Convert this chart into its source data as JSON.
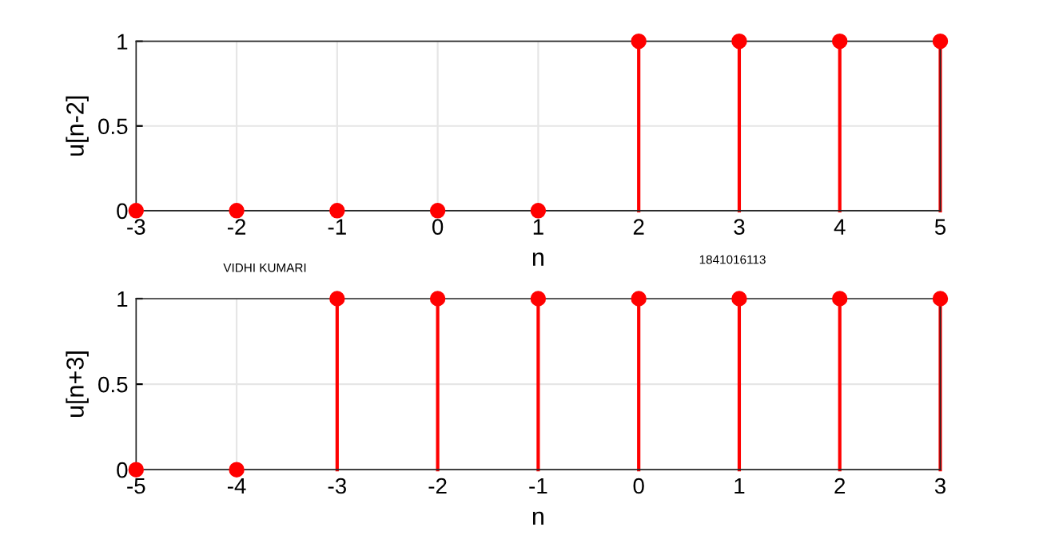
{
  "chart_data": [
    {
      "type": "lollipop",
      "xlabel": "n",
      "ylabel": "u[n-2]",
      "x": [
        -3,
        -2,
        -1,
        0,
        1,
        2,
        3,
        4,
        5
      ],
      "series": [
        {
          "color": "#ff0000",
          "values": [
            0,
            0,
            0,
            0,
            0,
            1,
            1,
            1,
            1
          ]
        }
      ],
      "xlim": [
        -3,
        5
      ],
      "ylim": [
        0,
        1
      ],
      "xticks": [
        -3,
        -2,
        -1,
        0,
        1,
        2,
        3,
        4,
        5
      ],
      "yticks": [
        0,
        0.5,
        1
      ],
      "grid": true,
      "marker": "circle",
      "annotations": [
        "VIDHI KUMARI",
        "1841016113"
      ]
    },
    {
      "type": "lollipop",
      "xlabel": "n",
      "ylabel": "u[n+3]",
      "x": [
        -5,
        -4,
        -3,
        -2,
        -1,
        0,
        1,
        2,
        3
      ],
      "series": [
        {
          "color": "#ff0000",
          "values": [
            0,
            0,
            1,
            1,
            1,
            1,
            1,
            1,
            1
          ]
        }
      ],
      "xlim": [
        -5,
        3
      ],
      "ylim": [
        0,
        1
      ],
      "xticks": [
        -5,
        -4,
        -3,
        -2,
        -1,
        0,
        1,
        2,
        3
      ],
      "yticks": [
        0,
        0.5,
        1
      ],
      "grid": true,
      "marker": "circle"
    }
  ]
}
